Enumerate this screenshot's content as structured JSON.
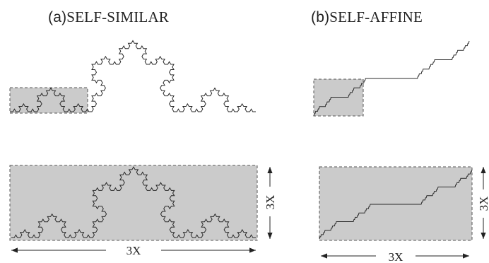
{
  "panels": [
    {
      "tag": "(a)",
      "title": "SELF-SIMILAR",
      "width_label": "3X",
      "height_label": "3X"
    },
    {
      "tag": "(b)",
      "title": "SELF-AFFINE",
      "width_label": "3X",
      "height_label": "3X"
    }
  ],
  "colors": {
    "line": "#2a2a2a",
    "box_fill": "#cbcbcb",
    "box_stroke": "#555555"
  }
}
